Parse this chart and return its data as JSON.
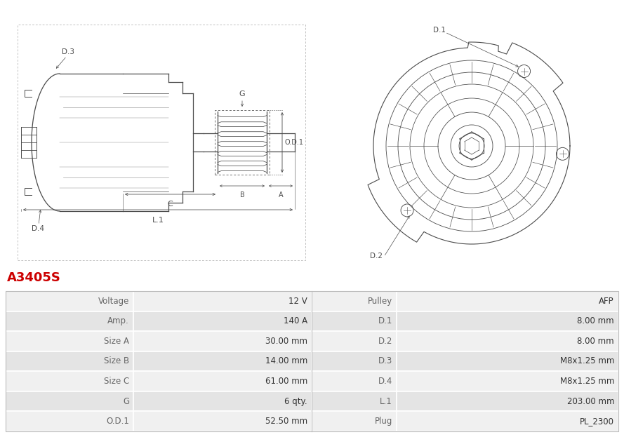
{
  "title": "A3405S",
  "title_color": "#cc0000",
  "bg_color": "#ffffff",
  "table": {
    "left_labels": [
      "Voltage",
      "Amp.",
      "Size A",
      "Size B",
      "Size C",
      "G",
      "O.D.1"
    ],
    "left_values": [
      "12 V",
      "140 A",
      "30.00 mm",
      "14.00 mm",
      "61.00 mm",
      "6 qty.",
      "52.50 mm"
    ],
    "right_labels": [
      "Pulley",
      "D.1",
      "D.2",
      "D.3",
      "D.4",
      "L.1",
      "Plug"
    ],
    "right_values": [
      "AFP",
      "8.00 mm",
      "8.00 mm",
      "M8x1.25 mm",
      "M8x1.25 mm",
      "203.00 mm",
      "PL_2300"
    ],
    "row_bg_odd": "#f0f0f0",
    "row_bg_even": "#e4e4e4",
    "border_color": "#ffffff",
    "label_color": "#666666",
    "value_color": "#333333",
    "font_size": 8.5
  }
}
